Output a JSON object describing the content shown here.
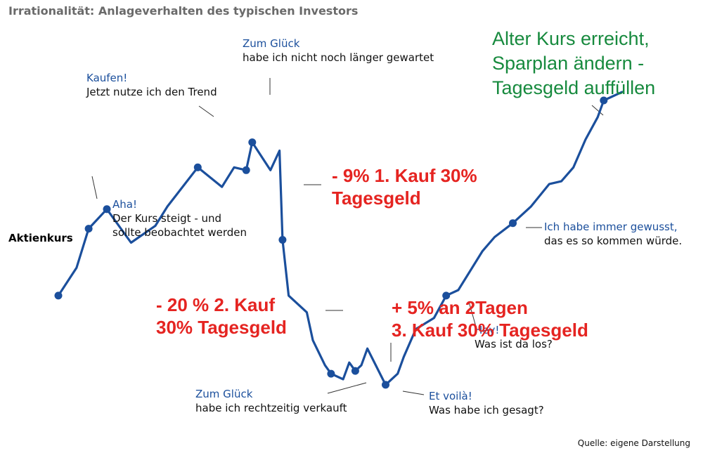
{
  "chart_data": {
    "type": "line",
    "title": "Irrationalität: Anlageverhalten des typischen Investors",
    "ylabel": "Aktienkurs",
    "xlabel": "",
    "ylim": [
      0,
      100
    ],
    "grid": false,
    "line_color": "#1b4f9c",
    "points": [
      {
        "x": 0,
        "y": 30
      },
      {
        "x": 3,
        "y": 40
      },
      {
        "x": 5,
        "y": 54,
        "marker": true
      },
      {
        "x": 8,
        "y": 61,
        "marker": true
      },
      {
        "x": 12,
        "y": 49
      },
      {
        "x": 16,
        "y": 55
      },
      {
        "x": 18,
        "y": 62
      },
      {
        "x": 23,
        "y": 76,
        "marker": true
      },
      {
        "x": 27,
        "y": 69
      },
      {
        "x": 29,
        "y": 76
      },
      {
        "x": 31,
        "y": 75,
        "marker": true
      },
      {
        "x": 32,
        "y": 85,
        "marker": true
      },
      {
        "x": 35,
        "y": 75
      },
      {
        "x": 36.5,
        "y": 82
      },
      {
        "x": 37,
        "y": 50,
        "marker": true
      },
      {
        "x": 38,
        "y": 30
      },
      {
        "x": 41,
        "y": 24
      },
      {
        "x": 42,
        "y": 14
      },
      {
        "x": 44,
        "y": 5
      },
      {
        "x": 45,
        "y": 2,
        "marker": true
      },
      {
        "x": 47,
        "y": 0
      },
      {
        "x": 48,
        "y": 6
      },
      {
        "x": 49,
        "y": 3,
        "marker": true
      },
      {
        "x": 50,
        "y": 5
      },
      {
        "x": 51,
        "y": 11
      },
      {
        "x": 54,
        "y": -2,
        "marker": true
      },
      {
        "x": 56,
        "y": 2
      },
      {
        "x": 57,
        "y": 8
      },
      {
        "x": 59,
        "y": 18
      },
      {
        "x": 62,
        "y": 22
      },
      {
        "x": 64,
        "y": 30,
        "marker": true
      },
      {
        "x": 66,
        "y": 32
      },
      {
        "x": 70,
        "y": 46
      },
      {
        "x": 72,
        "y": 51
      },
      {
        "x": 75,
        "y": 56,
        "marker": true
      },
      {
        "x": 78,
        "y": 62
      },
      {
        "x": 81,
        "y": 70
      },
      {
        "x": 83,
        "y": 71
      },
      {
        "x": 85,
        "y": 76
      },
      {
        "x": 87,
        "y": 86
      },
      {
        "x": 89,
        "y": 94
      },
      {
        "x": 90,
        "y": 100,
        "marker": true
      },
      {
        "x": 93,
        "y": 103
      }
    ]
  },
  "annotations": {
    "aha": {
      "head": "Aha!",
      "text1": "Der Kurs steigt - und",
      "text2": "sollte beobachtet werden"
    },
    "kaufen": {
      "head": "Kaufen!",
      "text1": "Jetzt nutze ich den Trend"
    },
    "glueck1": {
      "head": "Zum Glück",
      "text1": "habe ich nicht noch länger gewartet"
    },
    "glueck2": {
      "head": "Zum Glück",
      "text1": "habe ich rechtzeitig verkauft"
    },
    "voila": {
      "head": "Et voilà!",
      "text1": "Was habe ich gesagt?"
    },
    "hey": {
      "head": "Hey!",
      "text1": "Was ist da los?"
    },
    "gewusst": {
      "head": "Ich habe immer gewusst,",
      "text1": "das es so kommen würde."
    }
  },
  "red_notes": {
    "kauf1": {
      "line1": "- 9% 1. Kauf 30%",
      "line2": "Tagesgeld"
    },
    "kauf2": {
      "line1": "- 20 % 2. Kauf",
      "line2": "30% Tagesgeld"
    },
    "kauf3": {
      "line1": "+ 5% an 2Tagen",
      "line2": "3. Kauf 30% Tagesgeld"
    }
  },
  "green_note": {
    "line1": "Alter Kurs erreicht,",
    "line2": "Sparplan ändern -",
    "line3": "Tagesgeld auffüllen"
  },
  "source": "Quelle: eigene Darstellung"
}
